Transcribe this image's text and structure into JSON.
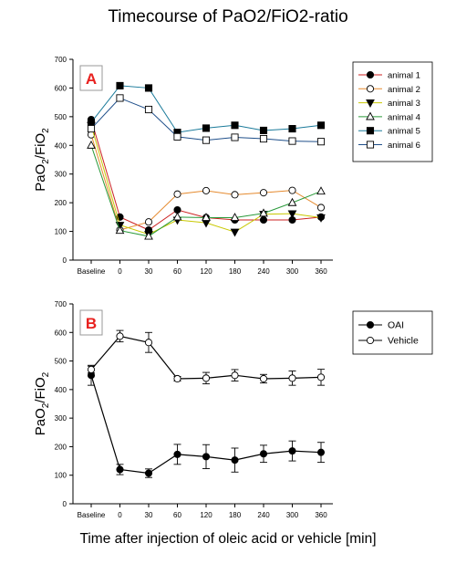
{
  "figure": {
    "title": "Timecourse of PaO2/FiO2-ratio",
    "xlabel": "Time after injection of oleic acid or vehicle [min]"
  },
  "colors": {
    "panel_label_text": "#e8211f",
    "panel_label_border": "#999999",
    "animal 1": "#cc2222",
    "animal 2": "#e58a2e",
    "animal 3": "#c8c800",
    "animal 4": "#2a9a3a",
    "animal 5": "#1a7a9a",
    "animal 6": "#1f4f8a"
  },
  "chart_data": [
    {
      "type": "line",
      "panel_label": "A",
      "xlabel": "",
      "ylabel": "PaO2/FiO2",
      "ylabel_main": "PaO",
      "ylabel_sub1": "2",
      "ylabel_mid": "/FiO",
      "ylabel_sub2": "2",
      "categories": [
        "Baseline",
        "0",
        "30",
        "60",
        "120",
        "180",
        "240",
        "300",
        "360"
      ],
      "ylim": [
        0,
        700
      ],
      "yticks": [
        0,
        100,
        200,
        300,
        400,
        500,
        600,
        700
      ],
      "grid": false,
      "legend": "top-right",
      "series": [
        {
          "name": "animal 1",
          "marker": "circle-filled",
          "values": [
            490,
            150,
            105,
            175,
            148,
            140,
            140,
            140,
            150
          ]
        },
        {
          "name": "animal 2",
          "marker": "circle-open",
          "values": [
            437,
            105,
            133,
            230,
            242,
            228,
            235,
            243,
            183
          ]
        },
        {
          "name": "animal 3",
          "marker": "triangle-down-filled",
          "values": [
            470,
            122,
            90,
            140,
            130,
            98,
            160,
            162,
            148
          ]
        },
        {
          "name": "animal 4",
          "marker": "triangle-up-open",
          "values": [
            400,
            103,
            83,
            150,
            148,
            148,
            163,
            200,
            240
          ]
        },
        {
          "name": "animal 5",
          "marker": "square-filled",
          "values": [
            480,
            608,
            600,
            445,
            460,
            470,
            452,
            458,
            470
          ]
        },
        {
          "name": "animal 6",
          "marker": "square-open",
          "values": [
            458,
            565,
            525,
            430,
            418,
            428,
            423,
            415,
            413
          ]
        }
      ]
    },
    {
      "type": "line",
      "panel_label": "B",
      "xlabel": "",
      "ylabel": "PaO2/FiO2",
      "ylabel_main": "PaO",
      "ylabel_sub1": "2",
      "ylabel_mid": "/FiO",
      "ylabel_sub2": "2",
      "categories": [
        "Baseline",
        "0",
        "30",
        "60",
        "120",
        "180",
        "240",
        "300",
        "360"
      ],
      "ylim": [
        0,
        700
      ],
      "yticks": [
        0,
        100,
        200,
        300,
        400,
        500,
        600,
        700
      ],
      "grid": false,
      "legend": "top-right",
      "series": [
        {
          "name": "OAI",
          "marker": "circle-filled",
          "values": [
            450,
            120,
            107,
            173,
            165,
            153,
            175,
            185,
            180
          ],
          "errors": [
            35,
            18,
            15,
            35,
            42,
            42,
            30,
            35,
            35
          ]
        },
        {
          "name": "Vehicle",
          "marker": "circle-open",
          "values": [
            470,
            587,
            565,
            438,
            440,
            450,
            438,
            440,
            443
          ],
          "errors": [
            12,
            20,
            35,
            8,
            20,
            20,
            15,
            25,
            28
          ]
        }
      ]
    }
  ]
}
